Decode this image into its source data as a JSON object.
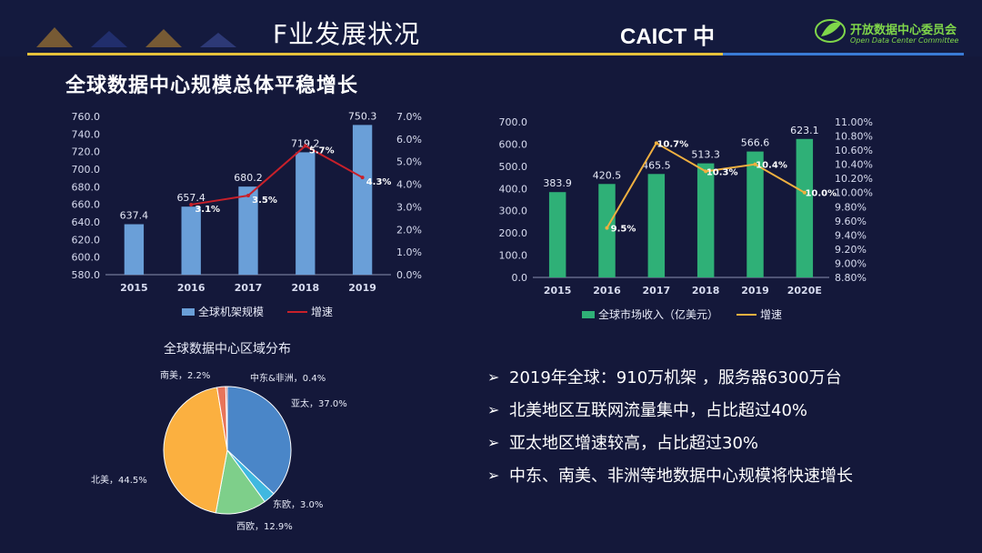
{
  "header": {
    "title": "F业发展状况",
    "caict_logo": "CAICT 中",
    "odcc_cn": "开放数据中心委员会",
    "odcc_en": "Open Data Center Committee"
  },
  "section_title": "全球数据中心规模总体平稳增长",
  "bullets": [
    "2019年全球：910万机架 ，服务器6300万台",
    "北美地区互联网流量集中，占比超过40%",
    "亚太地区增速较高，占比超过30%",
    "中东、南美、非洲等地数据中心规模将快速增长"
  ],
  "chart_data": [
    {
      "type": "bar",
      "categories": [
        "2015",
        "2016",
        "2017",
        "2018",
        "2019"
      ],
      "series": [
        {
          "name": "全球机架规模",
          "values": [
            637.4,
            657.4,
            680.2,
            719.2,
            750.3
          ],
          "axis": "left",
          "color": "#6a9fd8"
        },
        {
          "name": "增速",
          "type": "line",
          "x": [
            "2016",
            "2017",
            "2018",
            "2019"
          ],
          "values": [
            3.1,
            3.5,
            5.7,
            4.3
          ],
          "labels": [
            "3.1%",
            "3.5%",
            "5.7%",
            "4.3%"
          ],
          "axis": "right",
          "color": "#c8202a"
        }
      ],
      "ylim": [
        580,
        760
      ],
      "yticks": [
        "580.0",
        "600.0",
        "620.0",
        "640.0",
        "660.0",
        "680.0",
        "700.0",
        "720.0",
        "740.0",
        "760.0"
      ],
      "y2lim": [
        0,
        7
      ],
      "y2ticks": [
        "0.0%",
        "1.0%",
        "2.0%",
        "3.0%",
        "4.0%",
        "5.0%",
        "6.0%",
        "7.0%"
      ],
      "bar_labels": [
        "637.4",
        "657.4",
        "680.2",
        "719.2",
        "750.3"
      ],
      "legend": "bottom"
    },
    {
      "type": "bar",
      "categories": [
        "2015",
        "2016",
        "2017",
        "2018",
        "2019",
        "2020E"
      ],
      "series": [
        {
          "name": "全球市场收入（亿美元）",
          "values": [
            383.9,
            420.5,
            465.5,
            513.3,
            566.6,
            623.1
          ],
          "axis": "left",
          "color": "#2fb077"
        },
        {
          "name": "增速",
          "type": "line",
          "x": [
            "2016",
            "2017",
            "2018",
            "2019",
            "2020E"
          ],
          "values": [
            9.5,
            10.7,
            10.3,
            10.4,
            10.0
          ],
          "labels": [
            "9.5%",
            "10.7%",
            "10.3%",
            "10.4%",
            "10.0%"
          ],
          "axis": "right",
          "color": "#f0b040"
        }
      ],
      "ylim": [
        0,
        700
      ],
      "yticks": [
        "0.0",
        "100.0",
        "200.0",
        "300.0",
        "400.0",
        "500.0",
        "600.0",
        "700.0"
      ],
      "y2lim": [
        8.8,
        11.0
      ],
      "y2ticks": [
        "8.80%",
        "9.00%",
        "9.20%",
        "9.40%",
        "9.60%",
        "9.80%",
        "10.00%",
        "10.20%",
        "10.40%",
        "10.60%",
        "10.80%",
        "11.00%"
      ],
      "bar_labels": [
        "383.9",
        "420.5",
        "465.5",
        "513.3",
        "566.6",
        "623.1"
      ],
      "legend": "bottom"
    },
    {
      "type": "pie",
      "title": "全球数据中心区域分布",
      "slices": [
        {
          "name": "亚太",
          "value": 37.0,
          "label": "亚太，37.0%",
          "color": "#4a86c8"
        },
        {
          "name": "东欧",
          "value": 3.0,
          "label": "东欧，3.0%",
          "color": "#40b8e0"
        },
        {
          "name": "西欧",
          "value": 12.9,
          "label": "西欧，12.9%",
          "color": "#7ecf8a"
        },
        {
          "name": "北美",
          "value": 44.5,
          "label": "北美，44.5%",
          "color": "#fbb040"
        },
        {
          "name": "南美",
          "value": 2.2,
          "label": "南美，2.2%",
          "color": "#e8745a"
        },
        {
          "name": "中东&非洲",
          "value": 0.4,
          "label": "中东&非洲，0.4%",
          "color": "#c0504d"
        }
      ]
    }
  ]
}
